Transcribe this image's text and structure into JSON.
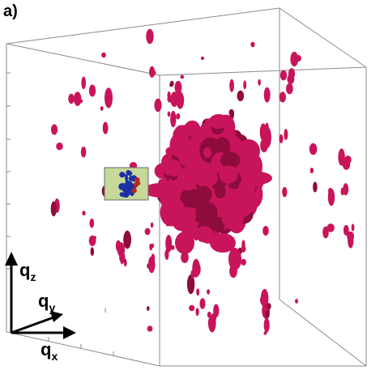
{
  "figure": {
    "panel_label": "a)",
    "axes": {
      "z": {
        "main": "q",
        "sub": "z"
      },
      "y": {
        "main": "q",
        "sub": "y"
      },
      "x": {
        "main": "q",
        "sub": "x"
      }
    },
    "colors": {
      "isosurface": "#c8145a",
      "isosurface_dark": "#8e0c3c",
      "inset_background": "#c6d89a",
      "inset_blue": "#1d2fa6",
      "inset_red": "#b8261e",
      "box_lines": "#8a8a8a"
    }
  }
}
